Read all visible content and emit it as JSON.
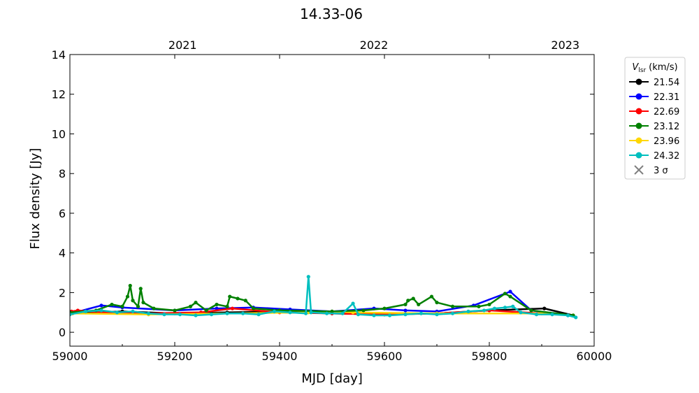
{
  "chart_data": {
    "type": "line",
    "title": "14.33-06",
    "xlabel": "MJD [day]",
    "ylabel": "Flux density [Jy]",
    "xlim": [
      59000,
      60000
    ],
    "ylim": [
      -0.7,
      14
    ],
    "x_ticks": [
      59000,
      59200,
      59400,
      59600,
      59800,
      60000
    ],
    "x_tick_labels": [
      "59000",
      "59200",
      "59400",
      "59600",
      "59800",
      "60000"
    ],
    "y_ticks": [
      0,
      2,
      4,
      6,
      8,
      10,
      12,
      14
    ],
    "y_tick_labels": [
      "0",
      "2",
      "4",
      "6",
      "8",
      "10",
      "12",
      "14"
    ],
    "top_axis": {
      "ticks_mjd": [
        59215,
        59580,
        59945
      ],
      "labels": [
        "2021",
        "2022",
        "2023"
      ]
    },
    "grid": false,
    "legend": {
      "placement": "outside-right",
      "title_main": "V",
      "title_sub": "lsr",
      "title_unit": "(km/s)",
      "limit_label": "3 σ",
      "limit_color": "#808080"
    },
    "series": [
      {
        "name": "21.54",
        "color": "#000000",
        "x": [
          59005,
          59100,
          59200,
          59300,
          59400,
          59500,
          59600,
          59700,
          59800,
          59905,
          59960
        ],
        "y": [
          0.95,
          1.05,
          0.95,
          1.0,
          1.05,
          0.95,
          0.9,
          0.95,
          1.1,
          1.2,
          0.85
        ]
      },
      {
        "name": "22.31",
        "color": "#0000ff",
        "x": [
          59010,
          59060,
          59100,
          59200,
          59280,
          59350,
          59420,
          59500,
          59580,
          59640,
          59700,
          59770,
          59840,
          59880,
          59950
        ],
        "y": [
          1.0,
          1.35,
          1.25,
          1.1,
          1.2,
          1.25,
          1.15,
          1.05,
          1.2,
          1.1,
          1.05,
          1.35,
          2.05,
          1.1,
          0.85
        ]
      },
      {
        "name": "22.69",
        "color": "#ff0000",
        "x": [
          59003,
          59015,
          59060,
          59150,
          59250,
          59310,
          59400,
          59500,
          59600,
          59700,
          59800,
          59900
        ],
        "y": [
          1.05,
          1.1,
          1.0,
          0.95,
          1.0,
          1.2,
          1.0,
          0.95,
          0.9,
          0.95,
          1.1,
          0.95
        ]
      },
      {
        "name": "23.12",
        "color": "#008000",
        "x": [
          59000,
          59050,
          59080,
          59100,
          59110,
          59115,
          59120,
          59130,
          59135,
          59140,
          59160,
          59200,
          59230,
          59240,
          59260,
          59280,
          59300,
          59305,
          59320,
          59335,
          59350,
          59400,
          59500,
          59560,
          59600,
          59640,
          59645,
          59655,
          59665,
          59690,
          59700,
          59730,
          59780,
          59800,
          59830,
          59840,
          59880,
          59960
        ],
        "y": [
          1.0,
          1.1,
          1.4,
          1.3,
          1.8,
          2.35,
          1.6,
          1.3,
          2.2,
          1.5,
          1.2,
          1.1,
          1.3,
          1.5,
          1.1,
          1.4,
          1.3,
          1.8,
          1.7,
          1.6,
          1.2,
          1.1,
          1.05,
          1.1,
          1.2,
          1.4,
          1.6,
          1.7,
          1.4,
          1.8,
          1.5,
          1.3,
          1.3,
          1.4,
          1.95,
          1.8,
          1.1,
          0.85
        ]
      },
      {
        "name": "23.96",
        "color": "#ffd700",
        "x": [
          59005,
          59150,
          59300,
          59455,
          59500,
          59540,
          59700,
          59900,
          59960
        ],
        "y": [
          0.95,
          0.9,
          0.95,
          1.0,
          1.05,
          1.0,
          0.95,
          0.95,
          0.85
        ]
      },
      {
        "name": "24.32",
        "color": "#00bfbf",
        "x": [
          59000,
          59030,
          59060,
          59090,
          59120,
          59150,
          59180,
          59210,
          59240,
          59270,
          59300,
          59330,
          59360,
          59390,
          59420,
          59450,
          59455,
          59460,
          59490,
          59520,
          59540,
          59550,
          59580,
          59610,
          59640,
          59670,
          59700,
          59730,
          59760,
          59790,
          59810,
          59830,
          59845,
          59860,
          59890,
          59920,
          59950,
          59965
        ],
        "y": [
          0.9,
          1.05,
          1.1,
          1.0,
          1.05,
          0.95,
          0.9,
          0.9,
          0.85,
          0.9,
          0.95,
          0.95,
          0.9,
          1.05,
          1.0,
          0.95,
          2.8,
          1.0,
          0.95,
          0.95,
          1.45,
          0.9,
          0.85,
          0.85,
          0.9,
          0.95,
          0.9,
          0.95,
          1.05,
          1.1,
          1.2,
          1.25,
          1.3,
          1.0,
          0.9,
          0.9,
          0.85,
          0.75
        ]
      }
    ]
  }
}
